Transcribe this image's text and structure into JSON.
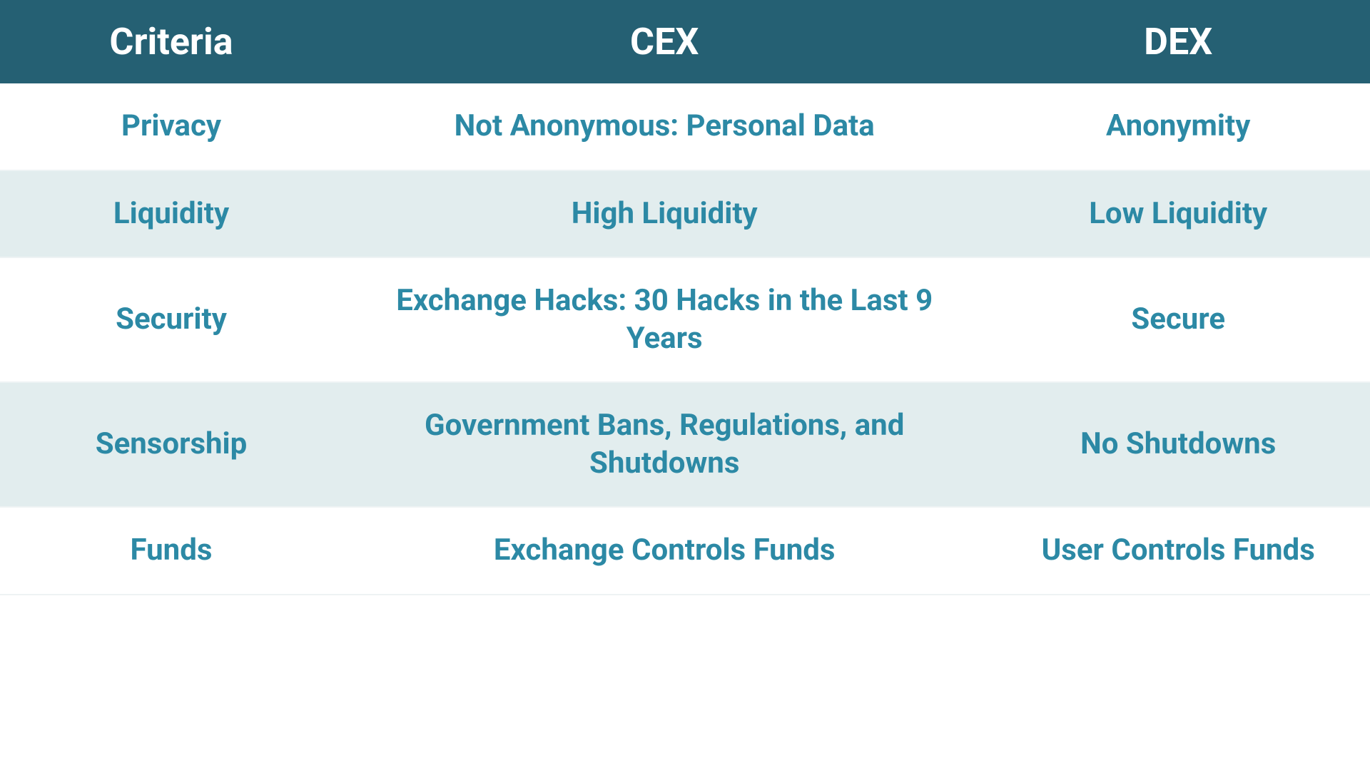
{
  "table": {
    "type": "table",
    "header_bg": "#256073",
    "header_text_color": "#ffffff",
    "header_fontsize": 52,
    "header_fontweight": 700,
    "body_text_color": "#2c89a5",
    "body_fontsize": 42,
    "body_fontweight": 700,
    "row_bg_default": "#ffffff",
    "row_bg_alt": "#e2edee",
    "row_border_color": "#eef3f4",
    "column_widths_pct": [
      25,
      47,
      28
    ],
    "columns": [
      "Criteria",
      "CEX",
      "DEX"
    ],
    "rows": [
      {
        "criteria": "Privacy",
        "cex": "Not Anonymous: Personal Data",
        "dex": "Anonymity",
        "alt": false
      },
      {
        "criteria": "Liquidity",
        "cex": "High Liquidity",
        "dex": "Low Liquidity",
        "alt": true
      },
      {
        "criteria": "Security",
        "cex": "Exchange Hacks: 30 Hacks in the Last 9 Years",
        "dex": "Secure",
        "alt": false
      },
      {
        "criteria": "Sensorship",
        "cex": "Government Bans, Regulations, and Shutdowns",
        "dex": "No Shutdowns",
        "alt": true
      },
      {
        "criteria": "Funds",
        "cex": "Exchange Controls Funds",
        "dex": "User Controls Funds",
        "alt": false
      }
    ]
  }
}
